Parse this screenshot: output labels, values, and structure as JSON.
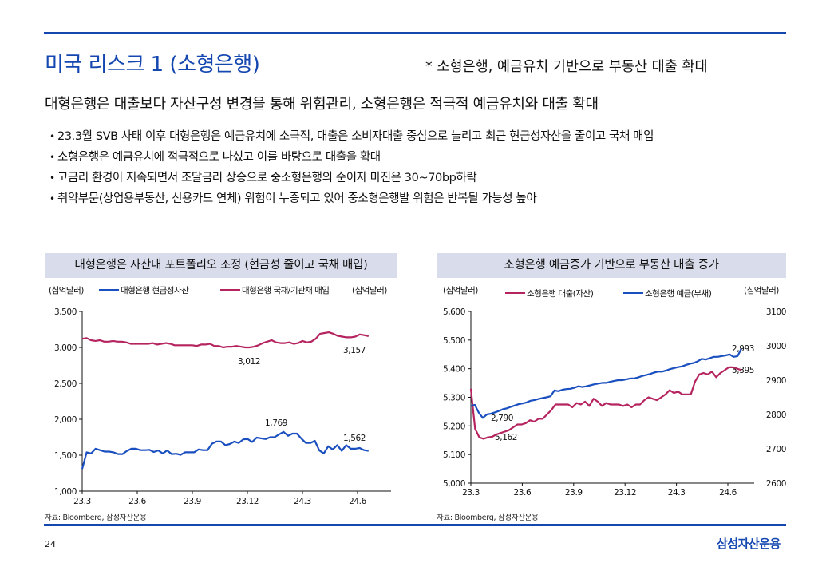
{
  "page": {
    "title": "미국 리스크 1 (소형은행)",
    "subnote": "* 소형은행, 예금유치 기반으로 부동산 대출 확대",
    "headline": "대형은행은 대출보다 자산구성 변경을 통해 위험관리, 소형은행은 적극적 예금유치와 대출 확대",
    "bullets": [
      "23.3월 SVB 사태 이후 대형은행은  예금유치에  소극적, 대출은 소비자대출  중심으로  늘리고  최근  현금성자산을  줄이고  국채  매입",
      "소형은행은  예금유치에  적극적으로  나섰고  이를  바탕으로  대출을  확대",
      "고금리  환경이  지속되면서  조달금리  상승으로  중소형은행의  순이자  마진은  30~70bp하락",
      "취약부문(상업용부동산,  신용카드  연체)  위험이  누증되고  있어  중소형은행발  위험은  반복될  가능성  높아"
    ],
    "page_number": "24",
    "brand": "삼성자산운용",
    "colors": {
      "accent": "#1447b0",
      "blue_series": "#1a4fbf",
      "red_series": "#b5245f",
      "panel_bg": "#d9dcea"
    }
  },
  "chart_data": [
    {
      "type": "line",
      "title": "대형은행은 자산내 포트폴리오 조정 (현금성 줄이고 국채 매입)",
      "ylabel_left": "(십억달러)",
      "ylabel_right": "(십억달러)",
      "ylim": [
        1000,
        3500
      ],
      "yticks": [
        "3,500",
        "3,000",
        "2,500",
        "2,000",
        "1,500",
        "1,000"
      ],
      "ytick_values": [
        3500,
        3000,
        2500,
        2000,
        1500,
        1000
      ],
      "xticks": [
        "23.3",
        "23.6",
        "23.9",
        "23.12",
        "24.3",
        "24.6"
      ],
      "xlim": [
        0,
        16
      ],
      "xtick_values": [
        0,
        3,
        6,
        9,
        12,
        15
      ],
      "source": "자료: Bloomberg, 삼성자산운용",
      "series": [
        {
          "name": "대형은행 현금성자산",
          "color": "#1a4fbf",
          "values": [
            1310,
            1540,
            1525,
            1590,
            1570,
            1550,
            1550,
            1540,
            1515,
            1515,
            1560,
            1590,
            1590,
            1570,
            1570,
            1575,
            1545,
            1565,
            1525,
            1565,
            1515,
            1520,
            1505,
            1540,
            1540,
            1540,
            1580,
            1570,
            1570,
            1660,
            1690,
            1690,
            1640,
            1655,
            1690,
            1670,
            1720,
            1725,
            1685,
            1745,
            1735,
            1725,
            1750,
            1750,
            1790,
            1825,
            1770,
            1800,
            1800,
            1730,
            1670,
            1670,
            1700,
            1565,
            1525,
            1625,
            1580,
            1640,
            1560,
            1640,
            1590,
            1590,
            1600,
            1570,
            1560
          ],
          "annotations": [
            {
              "label": "1,769"
            },
            {
              "label": "1,562"
            }
          ]
        },
        {
          "name": "대형은행 국채/기관채 매입",
          "color": "#b5245f",
          "values": [
            3120,
            3130,
            3100,
            3090,
            3100,
            3080,
            3080,
            3090,
            3080,
            3080,
            3070,
            3050,
            3050,
            3050,
            3050,
            3050,
            3060,
            3040,
            3050,
            3060,
            3050,
            3030,
            3030,
            3030,
            3030,
            3030,
            3020,
            3040,
            3040,
            3050,
            3020,
            3020,
            3000,
            3010,
            3010,
            3020,
            3010,
            3000,
            3000,
            3010,
            3030,
            3060,
            3080,
            3100,
            3070,
            3060,
            3060,
            3070,
            3050,
            3060,
            3090,
            3070,
            3080,
            3120,
            3190,
            3200,
            3210,
            3190,
            3160,
            3150,
            3140,
            3140,
            3150,
            3180,
            3170,
            3157
          ],
          "annotations": [
            {
              "label": "3,012"
            },
            {
              "label": "3,157"
            }
          ]
        }
      ]
    },
    {
      "type": "line",
      "title": "소형은행 예금증가 기반으로 부동산 대출 증가",
      "ylabel_left": "(십억달러)",
      "ylabel_right": "(십억달러)",
      "ylim_left": [
        5000,
        5600
      ],
      "ylim_right": [
        2600,
        3100
      ],
      "yticks_left": [
        "5,600",
        "5,500",
        "5,400",
        "5,300",
        "5,200",
        "5,100",
        "5,000"
      ],
      "ytick_values_left": [
        5600,
        5500,
        5400,
        5300,
        5200,
        5100,
        5000
      ],
      "yticks_right": [
        "3100",
        "3000",
        "2900",
        "2800",
        "2700",
        "2600"
      ],
      "ytick_values_right": [
        3100,
        3000,
        2900,
        2800,
        2700,
        2600
      ],
      "xticks": [
        "23.3",
        "23.6",
        "23.9",
        "23.12",
        "24.3",
        "24.6"
      ],
      "xlim": [
        0,
        16.5
      ],
      "xtick_values": [
        0,
        3,
        6,
        9,
        12,
        15
      ],
      "source": "자료: Bloomberg, 삼성자산운용",
      "series": [
        {
          "name": "소형은행 대출(자산)",
          "axis": "left",
          "color": "#b5245f",
          "values": [
            5330,
            5190,
            5160,
            5155,
            5160,
            5162,
            5170,
            5175,
            5180,
            5185,
            5195,
            5205,
            5205,
            5210,
            5220,
            5215,
            5225,
            5225,
            5240,
            5255,
            5275,
            5275,
            5275,
            5275,
            5265,
            5280,
            5275,
            5285,
            5270,
            5295,
            5285,
            5270,
            5280,
            5275,
            5275,
            5275,
            5270,
            5275,
            5265,
            5275,
            5275,
            5290,
            5300,
            5295,
            5290,
            5300,
            5310,
            5325,
            5315,
            5320,
            5310,
            5310,
            5310,
            5355,
            5380,
            5385,
            5380,
            5390,
            5370,
            5385,
            5395,
            5405,
            5405,
            5400,
            5395
          ],
          "annotations": [
            {
              "label": "5,162"
            },
            {
              "label": "5,395"
            }
          ]
        },
        {
          "name": "소형은행 예금(부채)",
          "axis": "right",
          "color": "#1a4fbf",
          "values": [
            2825,
            2828,
            2805,
            2790,
            2800,
            2802,
            2806,
            2810,
            2815,
            2818,
            2822,
            2826,
            2830,
            2832,
            2835,
            2840,
            2842,
            2845,
            2848,
            2850,
            2853,
            2870,
            2868,
            2872,
            2874,
            2875,
            2878,
            2882,
            2880,
            2882,
            2885,
            2888,
            2890,
            2892,
            2892,
            2895,
            2898,
            2900,
            2900,
            2902,
            2905,
            2905,
            2908,
            2912,
            2915,
            2918,
            2922,
            2925,
            2925,
            2928,
            2932,
            2935,
            2938,
            2940,
            2944,
            2948,
            2950,
            2955,
            2962,
            2960,
            2964,
            2968,
            2968,
            2970,
            2972,
            2975,
            2968,
            2970,
            2993
          ],
          "annotations": [
            {
              "label": "2,790"
            },
            {
              "label": "2,993"
            }
          ]
        }
      ]
    }
  ]
}
